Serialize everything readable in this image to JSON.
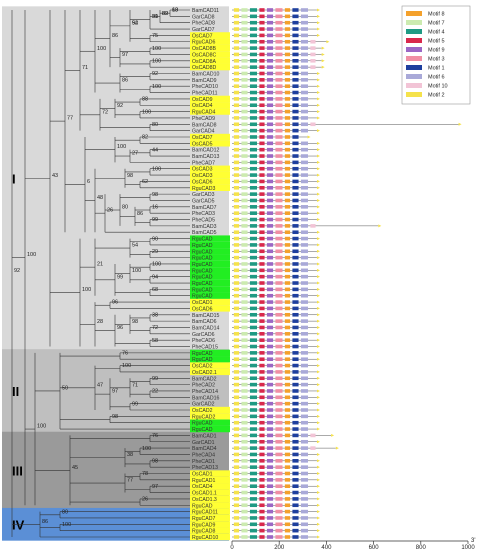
{
  "groups": [
    {
      "label": "I",
      "color": "#d9d9d9"
    },
    {
      "label": "II",
      "color": "#bfbfbf"
    },
    {
      "label": "III",
      "color": "#9a9a9a"
    },
    {
      "label": "IV",
      "color": "#5b8fd6"
    }
  ],
  "taxa": [
    "BamCAD11",
    "GarCAD8",
    "PheCAD8",
    "GarCAD7",
    "OsCAD7",
    "RguCAD6",
    "OsCAD8B",
    "OsCAD8C",
    "OsCAD8A",
    "OsCAD8D",
    "BamCAD10",
    "BamCAD9",
    "PheCAD10",
    "PheCAD11",
    "OsCAD9",
    "OsCAD4",
    "RguCAD4",
    "PheCAD9",
    "BamCAD8",
    "GarCAD4",
    "OsCAD7",
    "OsCAD5",
    "BamCAD12",
    "BamCAD13",
    "PheCAD7",
    "OsCAD3",
    "OsCAD3",
    "OsCAD6",
    "RguCAD3",
    "GarCAD3",
    "GarCAD5",
    "BamCAD7",
    "PheCAD3",
    "PheCAD5",
    "BamCAD3",
    "BamCAD5",
    "RguCAD",
    "RguCAD",
    "RguCAD",
    "RguCAD",
    "RguCAD",
    "RguCAD",
    "RguCAD",
    "RguCAD",
    "RguCAD",
    "RguCAD",
    "OsCAD1",
    "OsCAD6",
    "BamCAD15",
    "BamCAD6",
    "BamCAD14",
    "GarCAD6",
    "PheCAD6",
    "PheCAD15",
    "RguCAD",
    "RguCAD",
    "OsCAD2",
    "OsCAD2.1",
    "BamCAD2",
    "PheCAD2",
    "PheCAD14",
    "BamCAD16",
    "GarCAD2",
    "OsCAD2",
    "RguCAD2",
    "RguCAD",
    "RguCAD",
    "BamCAD1",
    "GarCAD1",
    "BamCAD4",
    "PheCAD4",
    "PheCAD1",
    "PheCAD13",
    "OsCAD1",
    "RguCAD1",
    "OsCAD4",
    "OsCAD1.1",
    "OsCAD1.3",
    "RguCAD",
    "RguCAD11",
    "RguCAD7",
    "RguCAD9",
    "RguCAD8",
    "RguCAD10"
  ],
  "taxon_highlight": [
    "none",
    "none",
    "none",
    "none",
    "yellow",
    "yellow",
    "yellow",
    "yellow",
    "yellow",
    "yellow",
    "none",
    "none",
    "none",
    "none",
    "yellow",
    "yellow",
    "yellow",
    "none",
    "none",
    "none",
    "yellow",
    "yellow",
    "none",
    "none",
    "none",
    "yellow",
    "yellow",
    "yellow",
    "yellow",
    "none",
    "none",
    "none",
    "none",
    "none",
    "none",
    "none",
    "green",
    "green",
    "green",
    "green",
    "green",
    "green",
    "green",
    "green",
    "green",
    "green",
    "yellow",
    "yellow",
    "none",
    "none",
    "none",
    "none",
    "none",
    "none",
    "green",
    "green",
    "yellow",
    "yellow",
    "none",
    "none",
    "none",
    "none",
    "none",
    "yellow",
    "yellow",
    "green",
    "green",
    "none",
    "none",
    "none",
    "none",
    "none",
    "none",
    "yellow",
    "yellow",
    "yellow",
    "yellow",
    "yellow",
    "yellow",
    "yellow",
    "yellow",
    "yellow",
    "yellow",
    "yellow"
  ],
  "bootstrap_labels": [
    "10",
    "89",
    "31",
    "94",
    "75",
    "86",
    "100",
    "100",
    "97",
    "100",
    "71",
    "92",
    "86",
    "100",
    "88",
    "92",
    "100",
    "72",
    "77",
    "80",
    "82",
    "100",
    "44",
    "27",
    "100",
    "98",
    "43",
    "62",
    "6",
    "98",
    "48",
    "16",
    "80",
    "26",
    "86",
    "99",
    "90",
    "54",
    "29",
    "100",
    "100",
    "21",
    "100",
    "92",
    "99",
    "94",
    "68",
    "100",
    "96",
    "38",
    "98",
    "28",
    "72",
    "96",
    "58",
    "76",
    "100",
    "99",
    "71",
    "47",
    "50",
    "22",
    "97",
    "99",
    "98",
    "100",
    "76",
    "100",
    "38",
    "98",
    "45",
    "78",
    "77",
    "97",
    "26",
    "80",
    "86",
    "100",
    "63",
    "82",
    "99",
    "52"
  ],
  "legend": {
    "items": [
      "Motif 8",
      "Motif 7",
      "Motif 4",
      "Motif 5",
      "Motif 9",
      "Motif 3",
      "Motif 1",
      "Motif 6",
      "Motif 10",
      "Motif 2"
    ],
    "colors": [
      "#f4a12c",
      "#ccebb0",
      "#1f9a83",
      "#d9284c",
      "#9b67c5",
      "#f08fa4",
      "#1e3f9e",
      "#a9a9d8",
      "#f2c4d6",
      "#f5e24b"
    ]
  },
  "motif_colors": [
    "#f4a12c",
    "#ccebb0",
    "#1f9a83",
    "#d9284c",
    "#9b67c5",
    "#f08fa4",
    "#1e3f9e",
    "#a9a9d8",
    "#f2c4d6",
    "#f5e24b"
  ],
  "axis": {
    "ticks": [
      "0",
      "200",
      "400",
      "600",
      "800",
      "1000"
    ],
    "unit_label": "3'"
  },
  "protein_lengths": [
    360,
    360,
    360,
    360,
    360,
    400,
    380,
    380,
    380,
    380,
    360,
    360,
    360,
    360,
    360,
    360,
    360,
    360,
    960,
    360,
    320,
    360,
    360,
    360,
    360,
    360,
    360,
    360,
    360,
    360,
    360,
    360,
    360,
    360,
    620,
    360,
    360,
    360,
    360,
    360,
    360,
    360,
    360,
    360,
    360,
    360,
    360,
    360,
    360,
    360,
    360,
    360,
    360,
    360,
    360,
    360,
    360,
    360,
    360,
    360,
    360,
    360,
    360,
    360,
    360,
    360,
    360,
    420,
    360,
    440,
    360,
    360,
    360,
    360,
    360,
    360,
    360,
    360,
    360,
    360,
    360,
    360,
    360,
    360
  ]
}
